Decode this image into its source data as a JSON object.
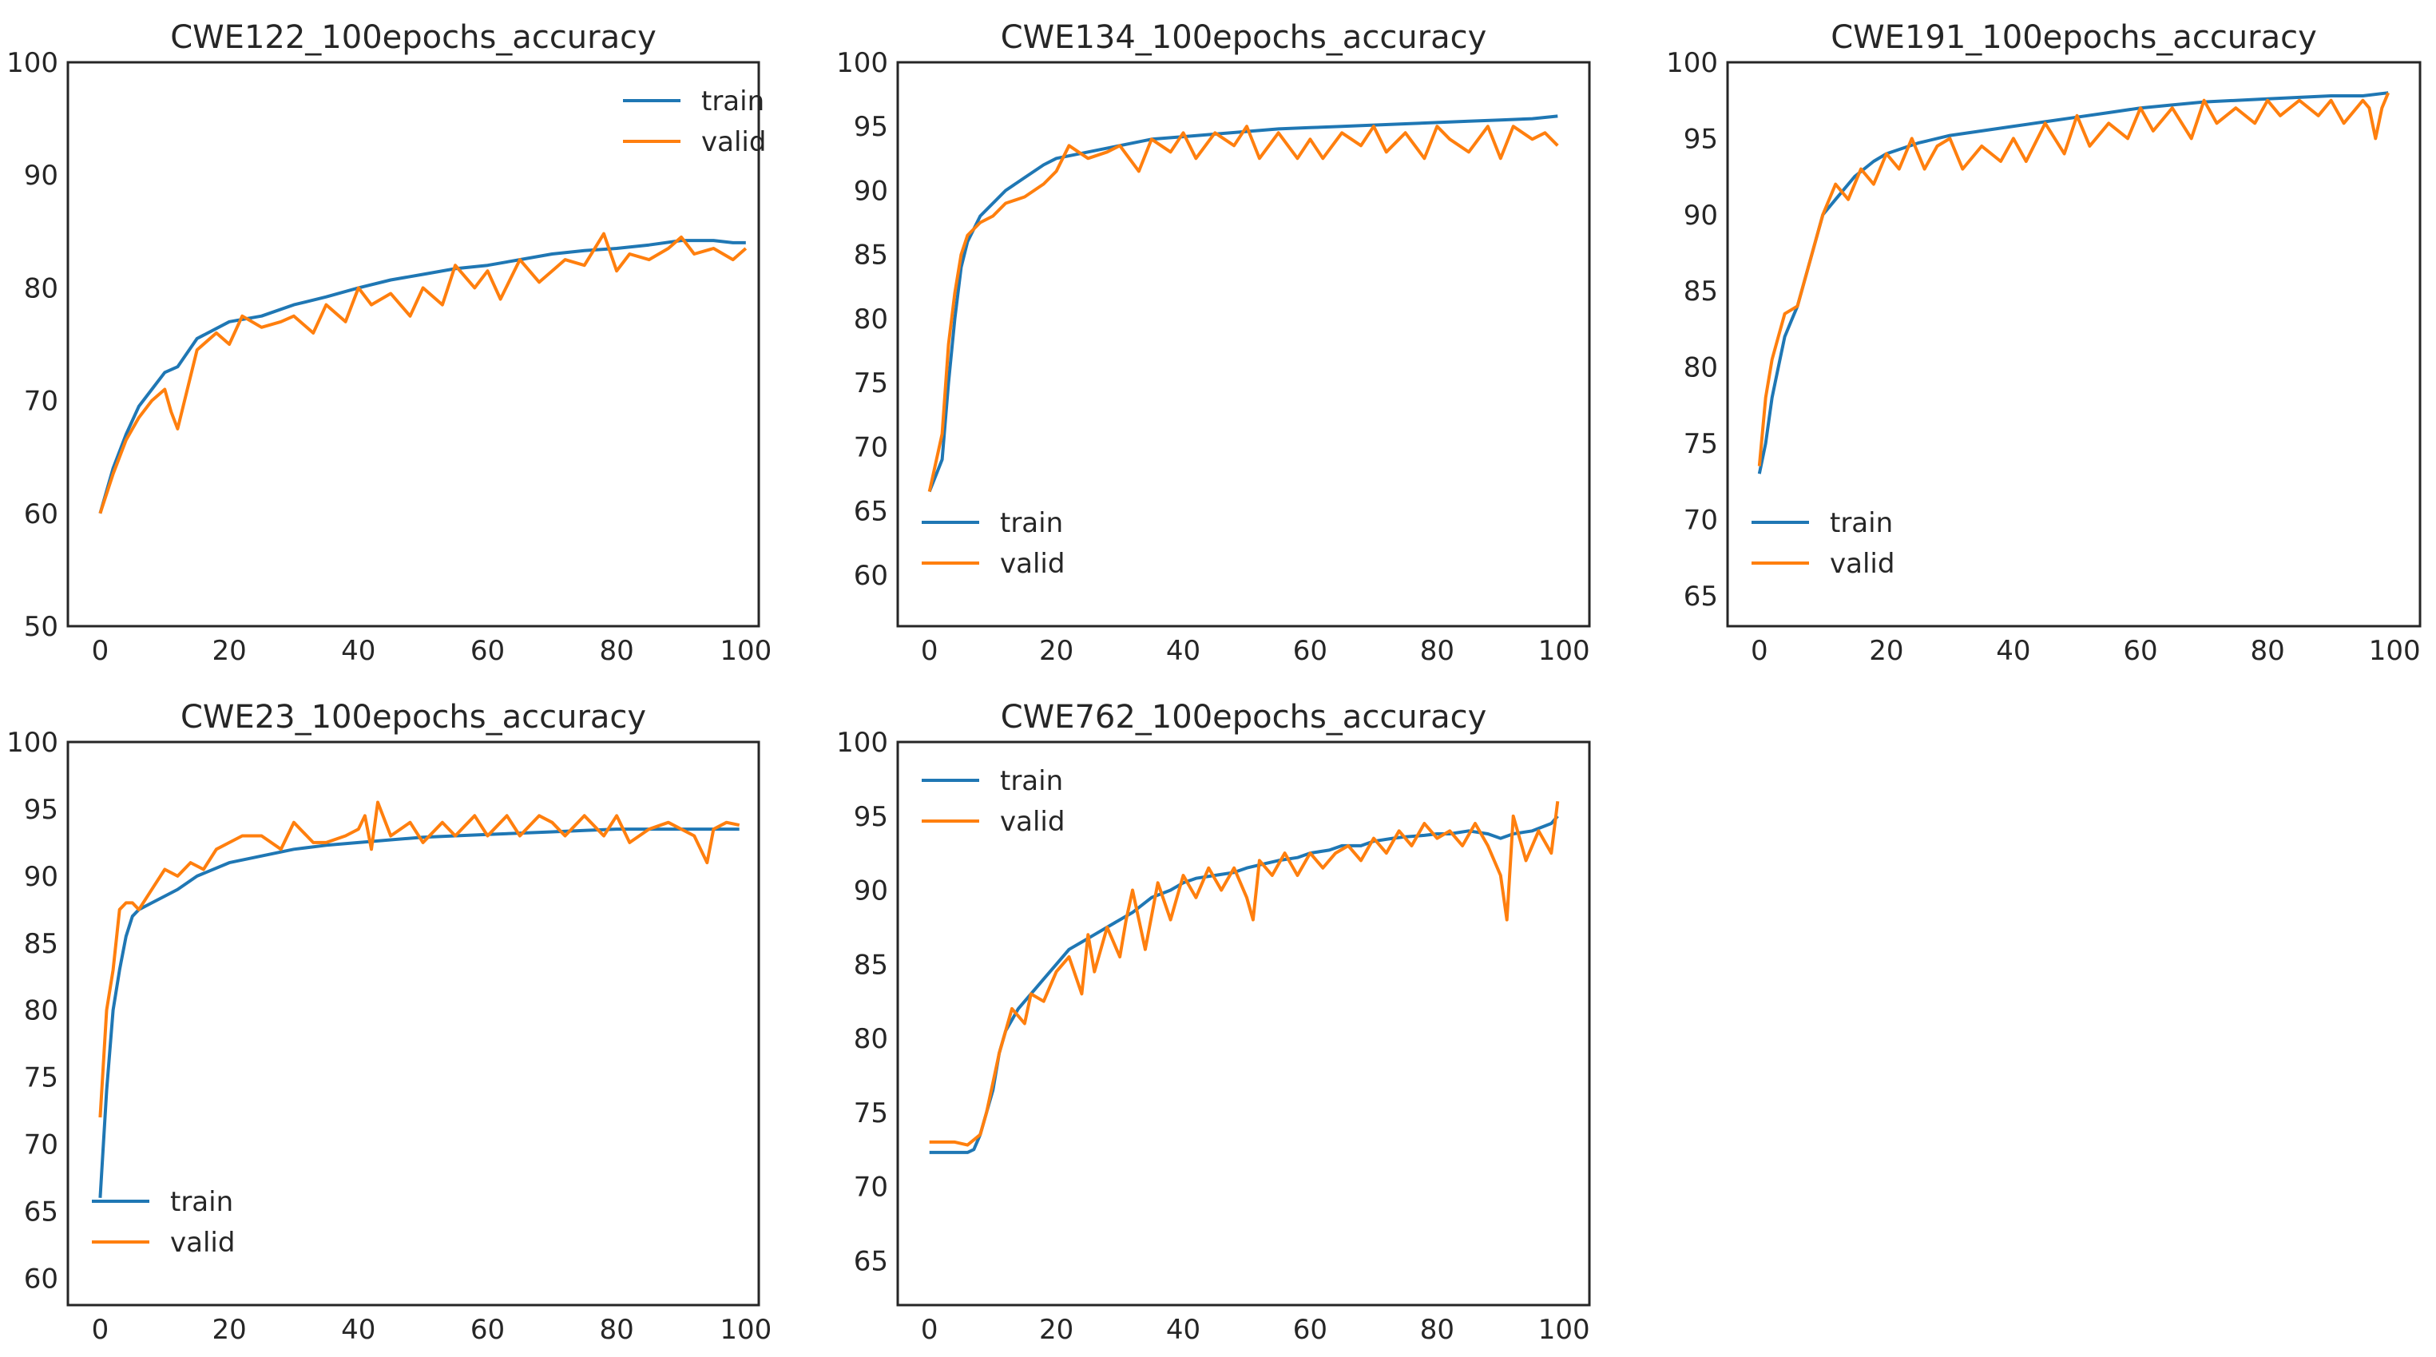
{
  "chart_data": [
    {
      "type": "line",
      "title": "CWE122_100epochs_accuracy",
      "xlabel": "",
      "ylabel": "",
      "xlim": [
        -5,
        102
      ],
      "ylim": [
        50,
        100
      ],
      "xticks": [
        0,
        20,
        40,
        60,
        80,
        100
      ],
      "yticks": [
        50,
        60,
        70,
        80,
        90,
        100
      ],
      "legend": "top-right",
      "series": [
        {
          "name": "train",
          "color": "#1f77b4",
          "x": [
            0,
            2,
            4,
            6,
            8,
            10,
            12,
            15,
            20,
            25,
            30,
            35,
            40,
            45,
            50,
            55,
            60,
            65,
            70,
            75,
            80,
            85,
            90,
            95,
            98,
            100
          ],
          "values": [
            60,
            64,
            67,
            69.5,
            71,
            72.5,
            73,
            75.5,
            77,
            77.5,
            78.5,
            79.2,
            80,
            80.7,
            81.2,
            81.7,
            82,
            82.5,
            83,
            83.3,
            83.5,
            83.8,
            84.2,
            84.2,
            84,
            84
          ]
        },
        {
          "name": "valid",
          "color": "#ff7f0e",
          "x": [
            0,
            2,
            4,
            6,
            8,
            10,
            11,
            12,
            15,
            18,
            20,
            22,
            25,
            28,
            30,
            33,
            35,
            38,
            40,
            42,
            45,
            48,
            50,
            53,
            55,
            58,
            60,
            62,
            65,
            68,
            70,
            72,
            75,
            78,
            80,
            82,
            85,
            88,
            90,
            92,
            95,
            98,
            100
          ],
          "values": [
            60,
            63.5,
            66.5,
            68.5,
            70,
            71,
            69,
            67.5,
            74.5,
            76,
            75,
            77.5,
            76.5,
            77,
            77.5,
            76,
            78.5,
            77,
            80,
            78.5,
            79.5,
            77.5,
            80,
            78.5,
            82,
            80,
            81.5,
            79,
            82.5,
            80.5,
            81.5,
            82.5,
            82,
            84.8,
            81.5,
            83,
            82.5,
            83.5,
            84.5,
            83,
            83.5,
            82.5,
            83.5
          ]
        }
      ]
    },
    {
      "type": "line",
      "title": "CWE134_100epochs_accuracy",
      "xlabel": "",
      "ylabel": "",
      "xlim": [
        -5,
        104
      ],
      "ylim": [
        56,
        100
      ],
      "xticks": [
        0,
        20,
        40,
        60,
        80,
        100
      ],
      "yticks": [
        60,
        65,
        70,
        75,
        80,
        85,
        90,
        95,
        100
      ],
      "legend": "bottom-left",
      "series": [
        {
          "name": "train",
          "color": "#1f77b4",
          "x": [
            0,
            2,
            3,
            4,
            5,
            6,
            8,
            10,
            12,
            15,
            18,
            20,
            25,
            30,
            35,
            40,
            45,
            50,
            55,
            60,
            65,
            70,
            75,
            80,
            85,
            90,
            95,
            99
          ],
          "values": [
            66.5,
            69,
            75,
            80,
            84,
            86,
            88,
            89,
            90,
            91,
            92,
            92.5,
            93,
            93.5,
            94,
            94.2,
            94.4,
            94.6,
            94.8,
            94.9,
            95,
            95.1,
            95.2,
            95.3,
            95.4,
            95.5,
            95.6,
            95.8
          ]
        },
        {
          "name": "valid",
          "color": "#ff7f0e",
          "x": [
            0,
            2,
            3,
            4,
            5,
            6,
            8,
            10,
            12,
            15,
            18,
            20,
            22,
            25,
            28,
            30,
            33,
            35,
            38,
            40,
            42,
            45,
            48,
            50,
            52,
            55,
            58,
            60,
            62,
            65,
            68,
            70,
            72,
            75,
            78,
            80,
            82,
            85,
            88,
            90,
            92,
            95,
            97,
            99
          ],
          "values": [
            66.5,
            71,
            78,
            82,
            85,
            86.5,
            87.5,
            88,
            89,
            89.5,
            90.5,
            91.5,
            93.5,
            92.5,
            93,
            93.5,
            91.5,
            94,
            93,
            94.5,
            92.5,
            94.5,
            93.5,
            95,
            92.5,
            94.5,
            92.5,
            94,
            92.5,
            94.5,
            93.5,
            95,
            93,
            94.5,
            92.5,
            95,
            94,
            93,
            95,
            92.5,
            95,
            94,
            94.5,
            93.5
          ]
        }
      ]
    },
    {
      "type": "line",
      "title": "CWE191_100epochs_accuracy",
      "xlabel": "",
      "ylabel": "",
      "xlim": [
        -5,
        104
      ],
      "ylim": [
        63,
        100
      ],
      "xticks": [
        0,
        20,
        40,
        60,
        80,
        100
      ],
      "yticks": [
        65,
        70,
        75,
        80,
        85,
        90,
        95,
        100
      ],
      "legend": "bottom-left",
      "series": [
        {
          "name": "train",
          "color": "#1f77b4",
          "x": [
            0,
            1,
            2,
            3,
            4,
            5,
            6,
            8,
            10,
            12,
            15,
            18,
            20,
            25,
            30,
            35,
            40,
            45,
            50,
            55,
            60,
            65,
            70,
            75,
            80,
            85,
            90,
            95,
            99
          ],
          "values": [
            73,
            75,
            78,
            80,
            82,
            83,
            84,
            87,
            90,
            91,
            92.5,
            93.5,
            94,
            94.7,
            95.2,
            95.5,
            95.8,
            96.1,
            96.4,
            96.7,
            97,
            97.2,
            97.4,
            97.5,
            97.6,
            97.7,
            97.8,
            97.8,
            98
          ]
        },
        {
          "name": "valid",
          "color": "#ff7f0e",
          "x": [
            0,
            1,
            2,
            3,
            4,
            6,
            8,
            10,
            12,
            14,
            16,
            18,
            20,
            22,
            24,
            26,
            28,
            30,
            32,
            35,
            38,
            40,
            42,
            45,
            48,
            50,
            52,
            55,
            58,
            60,
            62,
            65,
            68,
            70,
            72,
            75,
            78,
            80,
            82,
            85,
            88,
            90,
            92,
            95,
            96,
            97,
            98,
            99
          ],
          "values": [
            73.5,
            78,
            80.5,
            82,
            83.5,
            84,
            87,
            90,
            92,
            91,
            93,
            92,
            94,
            93,
            95,
            93,
            94.5,
            95,
            93,
            94.5,
            93.5,
            95,
            93.5,
            96,
            94,
            96.5,
            94.5,
            96,
            95,
            97,
            95.5,
            97,
            95,
            97.5,
            96,
            97,
            96,
            97.5,
            96.5,
            97.5,
            96.5,
            97.5,
            96,
            97.5,
            97,
            95,
            97,
            98
          ]
        }
      ]
    },
    {
      "type": "line",
      "title": "CWE23_100epochs_accuracy",
      "xlabel": "",
      "ylabel": "",
      "xlim": [
        -5,
        102
      ],
      "ylim": [
        58,
        100
      ],
      "xticks": [
        0,
        20,
        40,
        60,
        80,
        100
      ],
      "yticks": [
        60,
        65,
        70,
        75,
        80,
        85,
        90,
        95,
        100
      ],
      "legend": "bottom-left",
      "series": [
        {
          "name": "train",
          "color": "#1f77b4",
          "x": [
            0,
            1,
            2,
            3,
            4,
            5,
            6,
            8,
            10,
            12,
            15,
            20,
            25,
            30,
            35,
            40,
            45,
            50,
            55,
            60,
            65,
            70,
            75,
            80,
            85,
            90,
            95,
            99
          ],
          "values": [
            66,
            74,
            80,
            83,
            85.5,
            87,
            87.5,
            88,
            88.5,
            89,
            90,
            91,
            91.5,
            92,
            92.3,
            92.5,
            92.7,
            92.9,
            93,
            93.1,
            93.2,
            93.3,
            93.4,
            93.5,
            93.5,
            93.5,
            93.5,
            93.5
          ]
        },
        {
          "name": "valid",
          "color": "#ff7f0e",
          "x": [
            0,
            1,
            2,
            3,
            4,
            5,
            6,
            8,
            10,
            12,
            14,
            16,
            18,
            20,
            22,
            25,
            28,
            30,
            33,
            35,
            38,
            40,
            41,
            42,
            43,
            45,
            48,
            50,
            53,
            55,
            58,
            60,
            63,
            65,
            68,
            70,
            72,
            75,
            78,
            80,
            82,
            85,
            88,
            90,
            92,
            94,
            95,
            97,
            99
          ],
          "values": [
            72,
            80,
            83,
            87.5,
            88,
            88,
            87.5,
            89,
            90.5,
            90,
            91,
            90.5,
            92,
            92.5,
            93,
            93,
            92,
            94,
            92.5,
            92.5,
            93,
            93.5,
            94.5,
            92,
            95.5,
            93,
            94,
            92.5,
            94,
            93,
            94.5,
            93,
            94.5,
            93,
            94.5,
            94,
            93,
            94.5,
            93,
            94.5,
            92.5,
            93.5,
            94,
            93.5,
            93,
            91,
            93.5,
            94,
            93.8
          ]
        }
      ]
    },
    {
      "type": "line",
      "title": "CWE762_100epochs_accuracy",
      "xlabel": "",
      "ylabel": "",
      "xlim": [
        -5,
        104
      ],
      "ylim": [
        62,
        100
      ],
      "xticks": [
        0,
        20,
        40,
        60,
        80,
        100
      ],
      "yticks": [
        65,
        70,
        75,
        80,
        85,
        90,
        95,
        100
      ],
      "legend": "top-left",
      "series": [
        {
          "name": "train",
          "color": "#1f77b4",
          "x": [
            0,
            2,
            4,
            6,
            7,
            8,
            9,
            10,
            11,
            12,
            14,
            16,
            18,
            20,
            22,
            24,
            26,
            28,
            30,
            32,
            35,
            38,
            40,
            42,
            45,
            48,
            50,
            53,
            55,
            58,
            60,
            63,
            65,
            68,
            70,
            73,
            75,
            78,
            80,
            82,
            85,
            88,
            90,
            92,
            95,
            98,
            99
          ],
          "values": [
            72.3,
            72.3,
            72.3,
            72.3,
            72.5,
            73.5,
            75,
            76.5,
            79,
            80.5,
            82,
            83,
            84,
            85,
            86,
            86.5,
            87,
            87.5,
            88,
            88.5,
            89.5,
            90,
            90.5,
            90.8,
            91,
            91.2,
            91.5,
            91.8,
            92,
            92.2,
            92.5,
            92.7,
            93,
            93,
            93.3,
            93.5,
            93.6,
            93.7,
            93.8,
            93.8,
            94,
            93.8,
            93.5,
            93.8,
            94,
            94.5,
            95
          ]
        },
        {
          "name": "valid",
          "color": "#ff7f0e",
          "x": [
            0,
            2,
            4,
            6,
            8,
            9,
            10,
            11,
            12,
            13,
            14,
            15,
            16,
            18,
            20,
            22,
            24,
            25,
            26,
            28,
            30,
            31,
            32,
            34,
            36,
            38,
            40,
            42,
            44,
            46,
            48,
            50,
            51,
            52,
            54,
            56,
            58,
            60,
            62,
            64,
            66,
            68,
            70,
            72,
            74,
            76,
            78,
            80,
            82,
            84,
            86,
            88,
            90,
            91,
            92,
            94,
            96,
            98,
            99
          ],
          "values": [
            73,
            73,
            73,
            72.8,
            73.5,
            75,
            77,
            79,
            80.5,
            82,
            81.5,
            81,
            83,
            82.5,
            84.5,
            85.5,
            83,
            87,
            84.5,
            87.5,
            85.5,
            88,
            90,
            86,
            90.5,
            88,
            91,
            89.5,
            91.5,
            90,
            91.5,
            89.5,
            88,
            92,
            91,
            92.5,
            91,
            92.5,
            91.5,
            92.5,
            93,
            92,
            93.5,
            92.5,
            94,
            93,
            94.5,
            93.5,
            94,
            93,
            94.5,
            93,
            91,
            88,
            95,
            92,
            94,
            92.5,
            96
          ]
        }
      ]
    }
  ]
}
